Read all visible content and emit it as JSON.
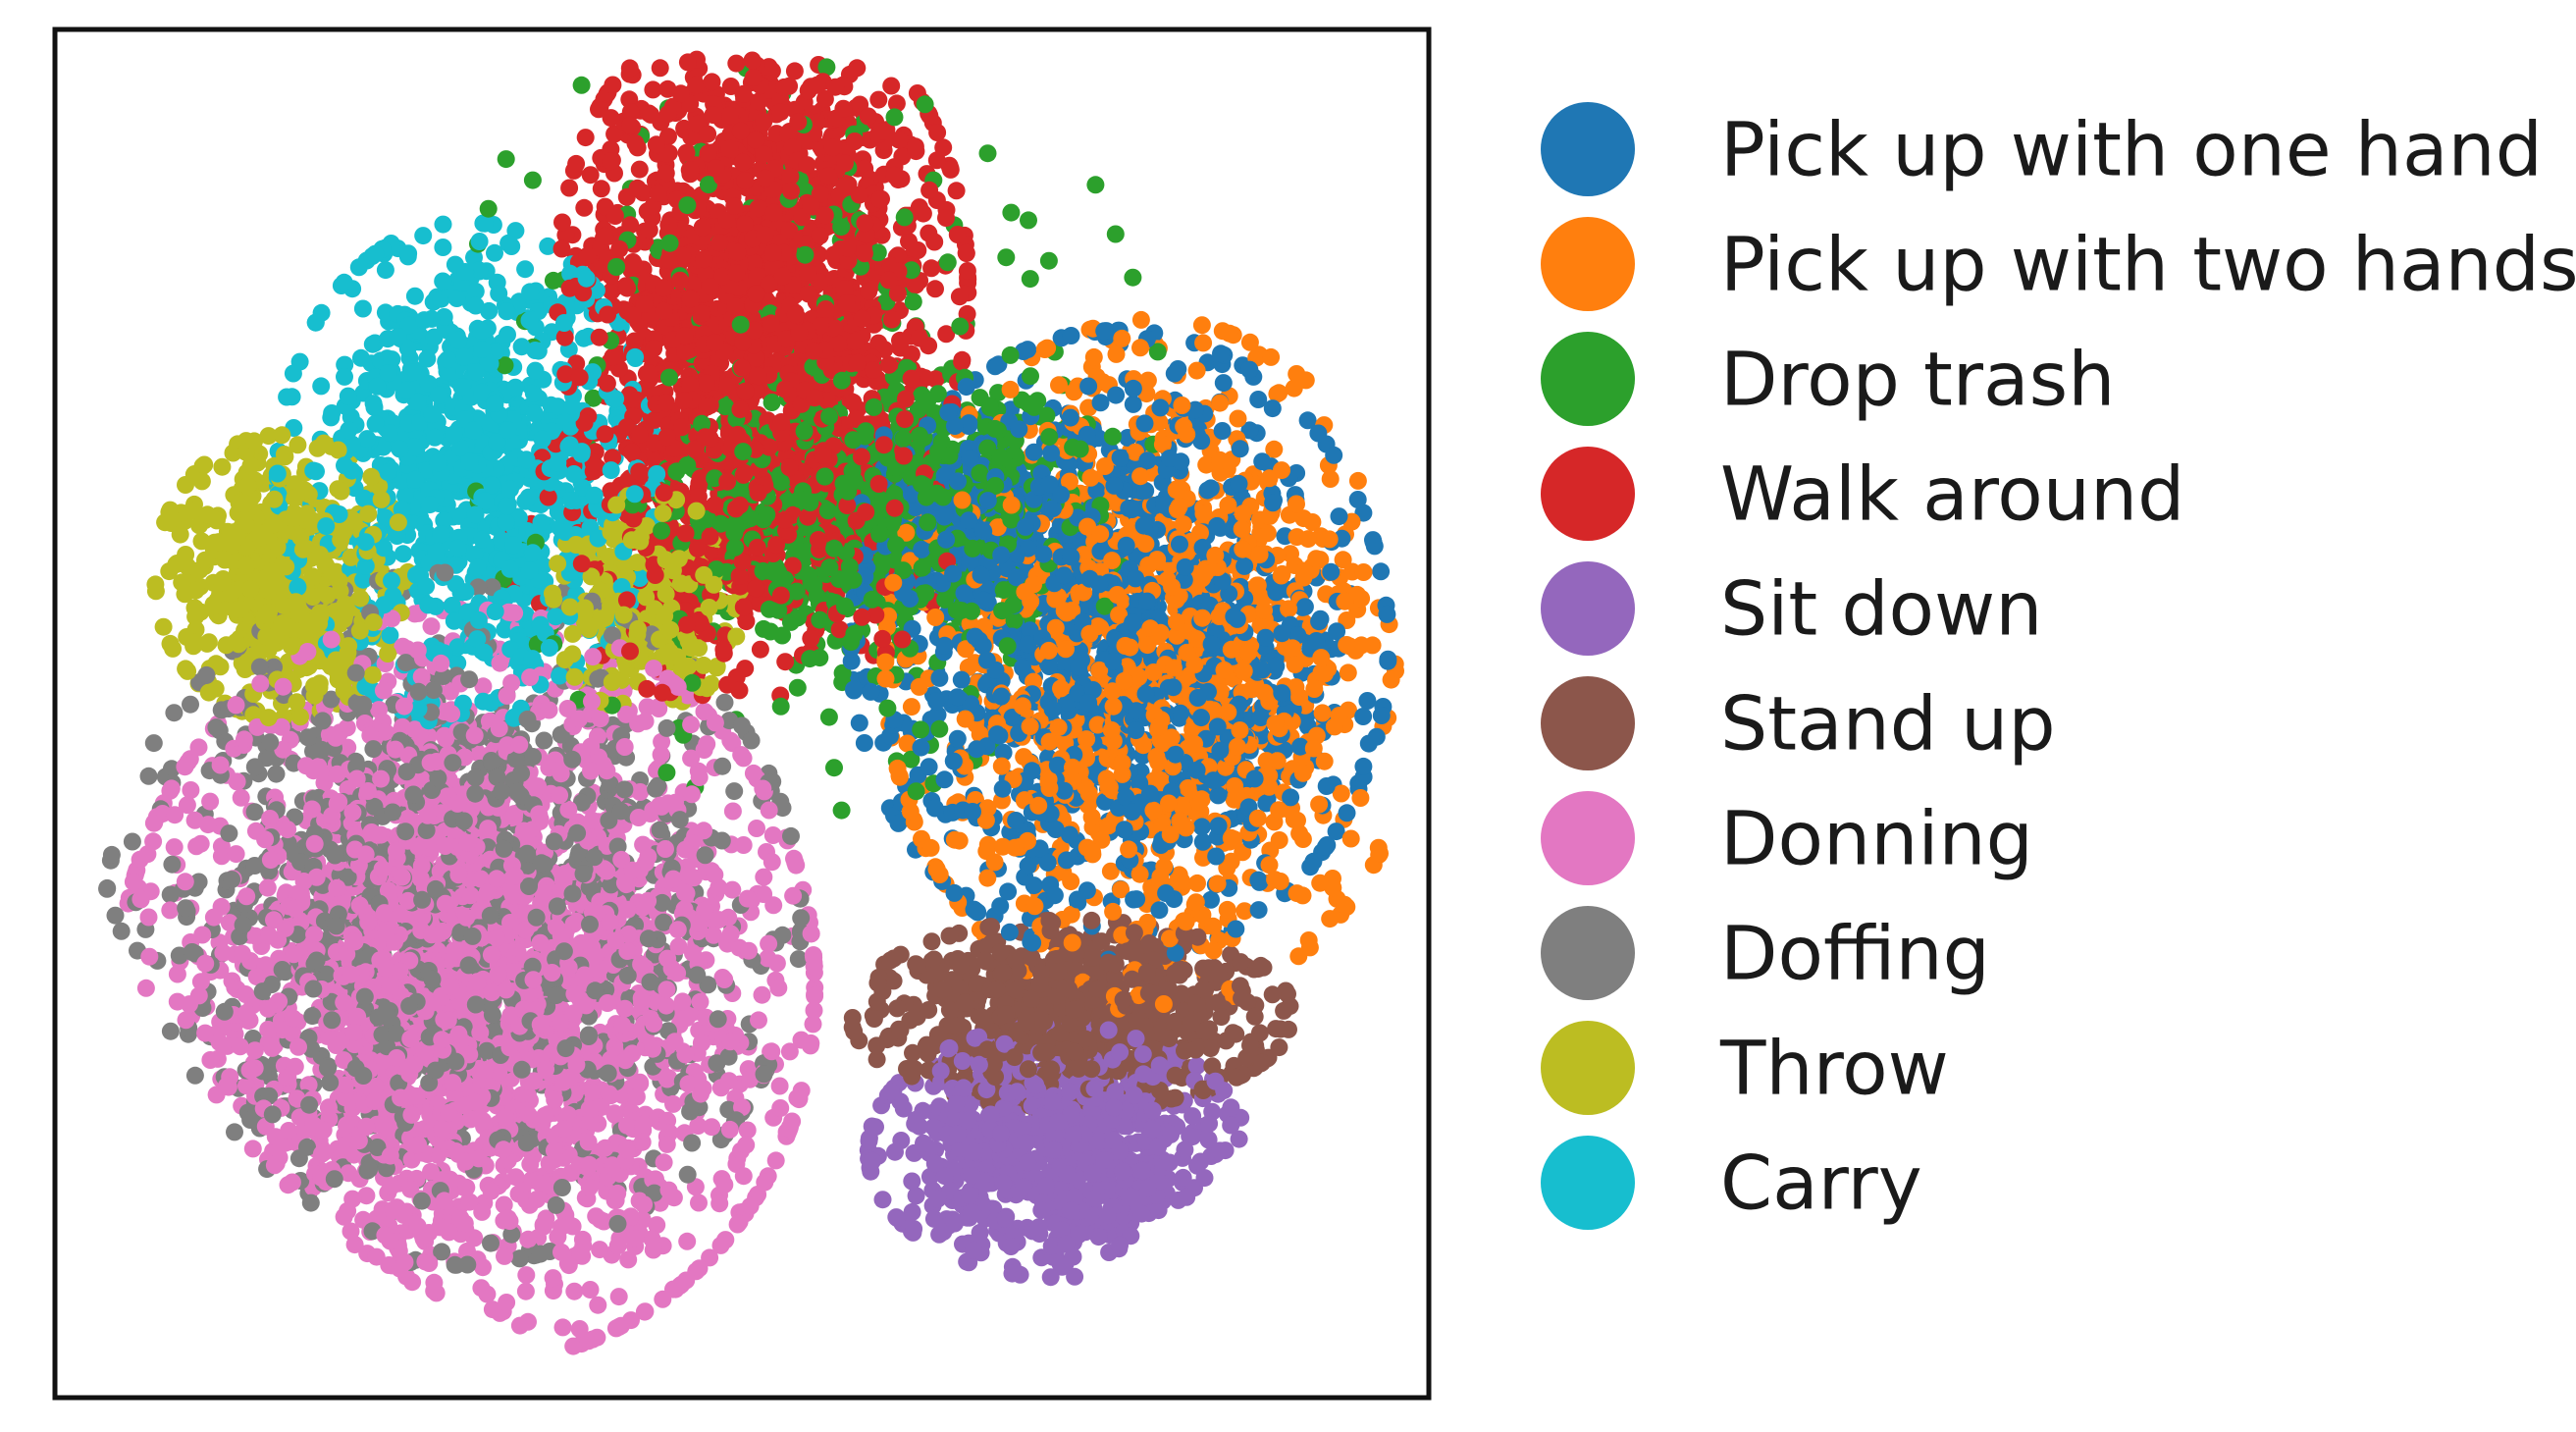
{
  "chart_data": {
    "type": "scatter",
    "title": "",
    "xlabel": "",
    "ylabel": "",
    "axes": {
      "ticks_visible": false,
      "grid": false,
      "xlim": [
        -100,
        100
      ],
      "ylim": [
        -100,
        100
      ]
    },
    "legend_placement": "right-outside",
    "series": [
      {
        "name": "Pick up with one hand",
        "color": "#1f77b4",
        "clusters": [
          {
            "cx": 55,
            "cy": 10,
            "sx": 17,
            "sy": 20,
            "n": 1200
          },
          {
            "cx": 32,
            "cy": 28,
            "sx": 8,
            "sy": 7,
            "n": 250
          }
        ]
      },
      {
        "name": "Pick up with two hands",
        "color": "#ff7f0e",
        "clusters": [
          {
            "cx": 60,
            "cy": 7,
            "sx": 17,
            "sy": 22,
            "n": 1250
          }
        ]
      },
      {
        "name": "Drop trash",
        "color": "#2ca02c",
        "clusters": [
          {
            "cx": 20,
            "cy": 30,
            "sx": 14,
            "sy": 9,
            "n": 750
          },
          {
            "cx": 10,
            "cy": 50,
            "sx": 22,
            "sy": 28,
            "n": 300
          }
        ]
      },
      {
        "name": "Walk around",
        "color": "#d62728",
        "clusters": [
          {
            "cx": 3,
            "cy": 62,
            "sx": 13,
            "sy": 19,
            "n": 1700
          },
          {
            "cx": -2,
            "cy": 25,
            "sx": 14,
            "sy": 10,
            "n": 400
          }
        ]
      },
      {
        "name": "Sit down",
        "color": "#9467bd",
        "clusters": [
          {
            "cx": 46,
            "cy": -64,
            "sx": 12,
            "sy": 8,
            "n": 850
          }
        ]
      },
      {
        "name": "Stand up",
        "color": "#8c564b",
        "clusters": [
          {
            "cx": 48,
            "cy": -44,
            "sx": 14,
            "sy": 6,
            "n": 750
          }
        ]
      },
      {
        "name": "Donning",
        "color": "#e377c2",
        "clusters": [
          {
            "cx": -40,
            "cy": -40,
            "sx": 22,
            "sy": 24,
            "n": 2800
          }
        ]
      },
      {
        "name": "Doffing",
        "color": "#7f7f7f",
        "clusters": [
          {
            "cx": -42,
            "cy": -30,
            "sx": 22,
            "sy": 22,
            "n": 1300
          }
        ]
      },
      {
        "name": "Throw",
        "color": "#bcbd22",
        "clusters": [
          {
            "cx": -67,
            "cy": 20,
            "sx": 8,
            "sy": 9,
            "n": 550
          },
          {
            "cx": -14,
            "cy": 16,
            "sx": 6,
            "sy": 7,
            "n": 280
          }
        ]
      },
      {
        "name": "Carry",
        "color": "#17becf",
        "clusters": [
          {
            "cx": -40,
            "cy": 35,
            "sx": 12,
            "sy": 16,
            "n": 1000
          }
        ]
      }
    ]
  }
}
